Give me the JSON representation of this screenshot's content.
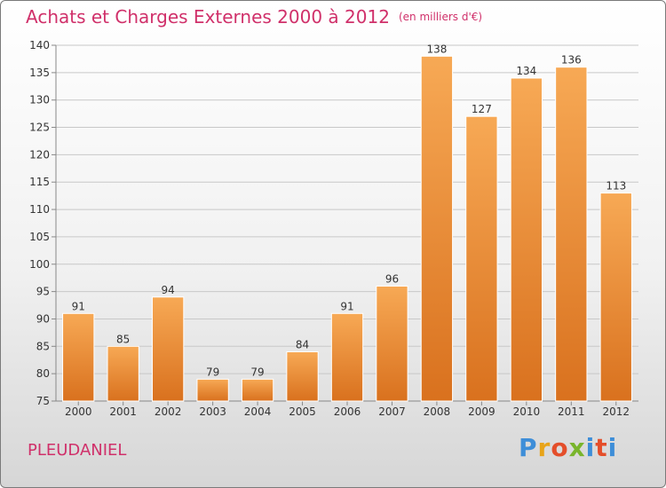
{
  "title": "Achats et Charges Externes 2000 à 2012",
  "unit": "(en milliers d'€)",
  "commune": "PLEUDANIEL",
  "logo": {
    "p1": "P",
    "p2": "r",
    "p3": "o",
    "p4": "x",
    "p5": "i",
    "p6": "t",
    "p7": "i"
  },
  "colors": {
    "title": "#d0306a",
    "bar_top": "#f7a955",
    "bar_bottom": "#d9711e",
    "grid": "#c8c8c8"
  },
  "chart_data": {
    "type": "bar",
    "categories": [
      "2000",
      "2001",
      "2002",
      "2003",
      "2004",
      "2005",
      "2006",
      "2007",
      "2008",
      "2009",
      "2010",
      "2011",
      "2012"
    ],
    "values": [
      91,
      85,
      94,
      79,
      79,
      84,
      91,
      96,
      138,
      127,
      134,
      136,
      113
    ],
    "data_labels": [
      "91",
      "85",
      "94",
      "79",
      "79",
      "84",
      "91",
      "96",
      "138",
      "127",
      "134",
      "136",
      "113"
    ],
    "ylim": [
      75,
      140
    ],
    "yticks": [
      "75",
      "80",
      "85",
      "90",
      "95",
      "100",
      "105",
      "110",
      "115",
      "120",
      "125",
      "130",
      "135",
      "140"
    ],
    "grid": true,
    "xlabel": "",
    "ylabel": ""
  }
}
